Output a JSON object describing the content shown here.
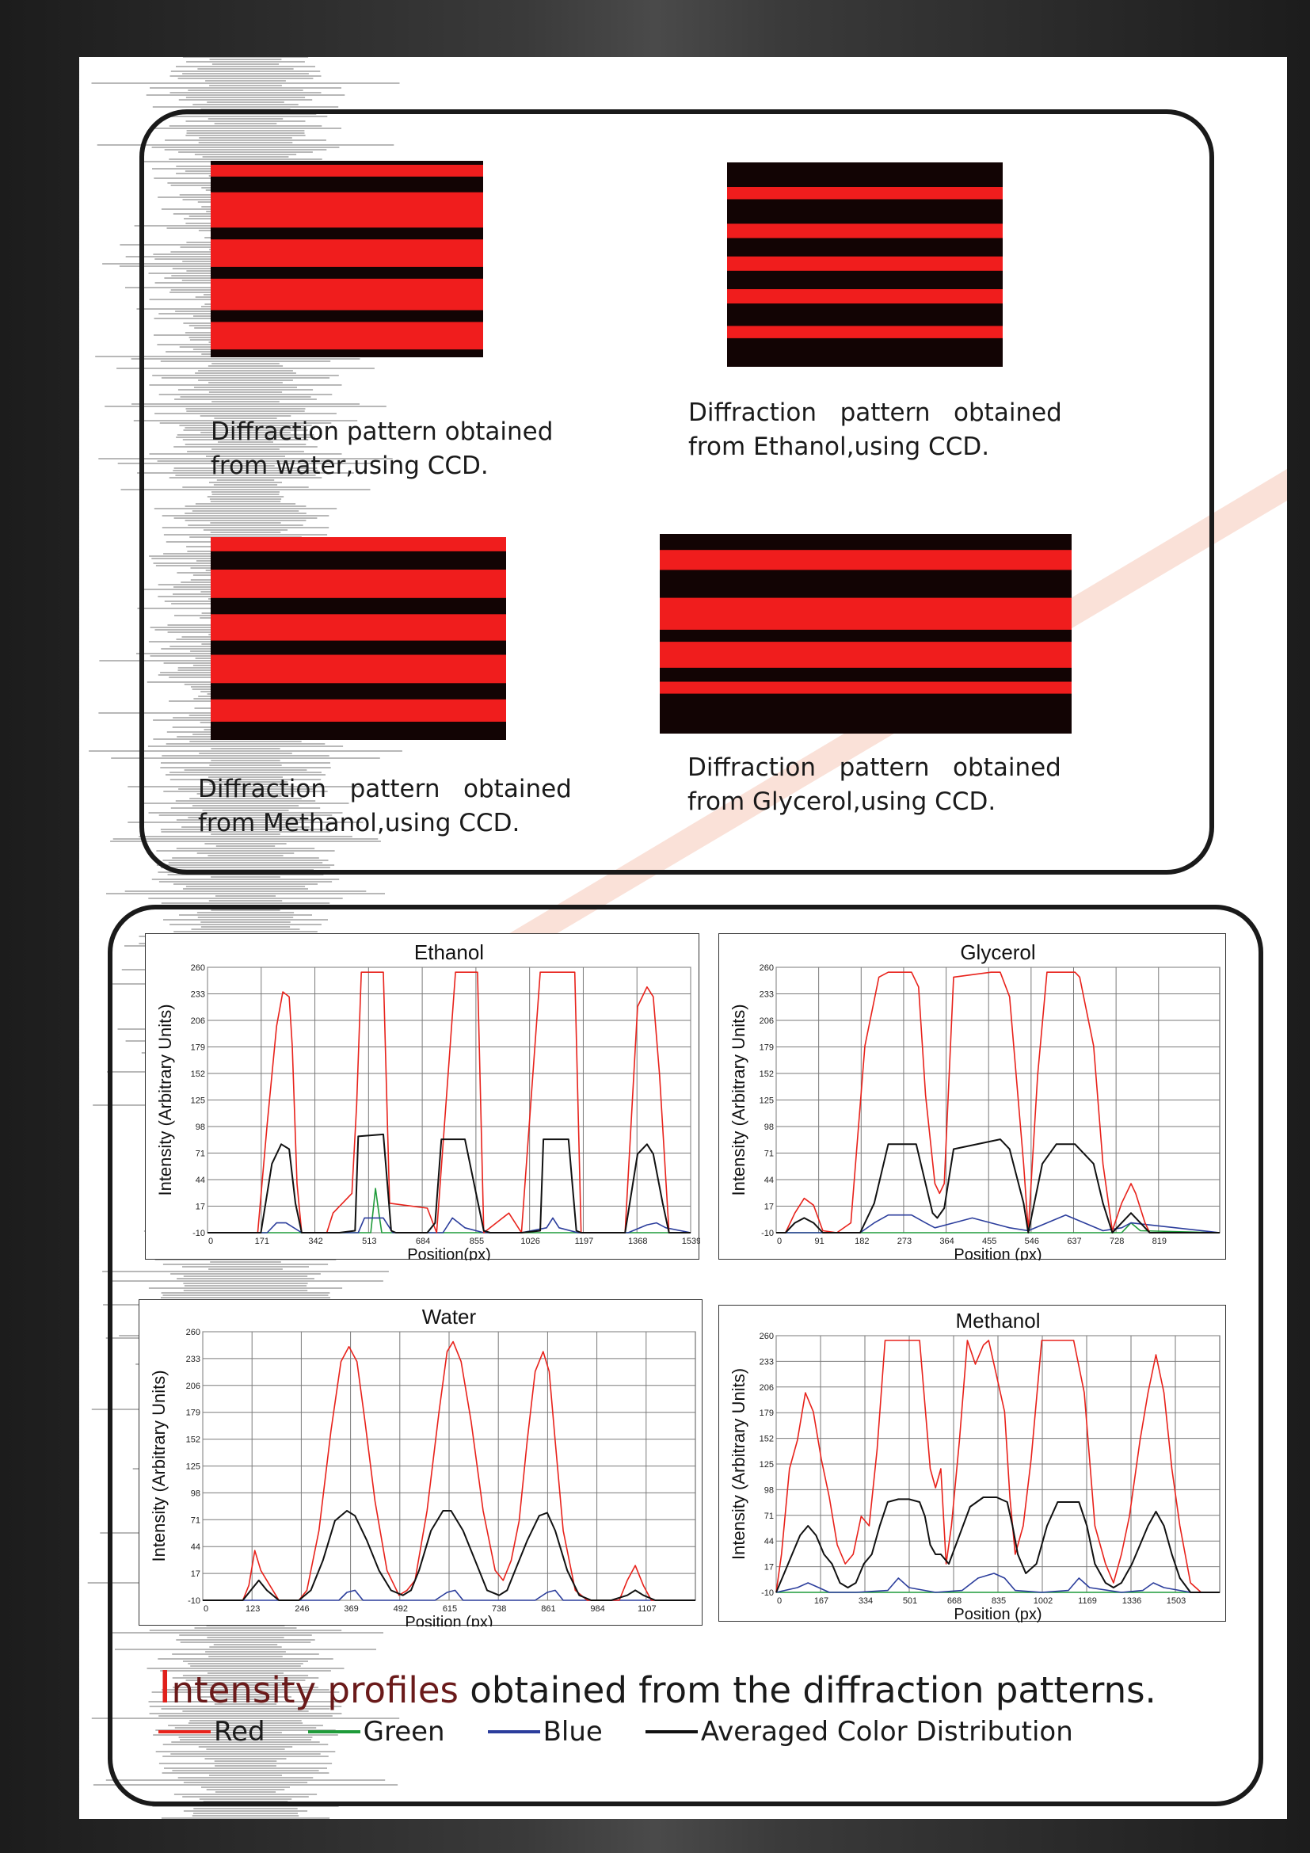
{
  "captions": {
    "water": [
      "Diffraction pattern obtained",
      "from water,using CCD."
    ],
    "ethanol": [
      "Diffraction   pattern   obtained",
      "from Ethanol,using CCD."
    ],
    "methanol": [
      "Diffraction   pattern   obtained",
      "from Methanol,using CCD."
    ],
    "glycerol": [
      "Diffraction   pattern   obtained",
      "from Glycerol,using CCD."
    ]
  },
  "colors": {
    "red": "#e8221b",
    "green": "#1f9b3a",
    "blue": "#2b3d9c",
    "black": "#111111",
    "photo_red": "#f01d1d",
    "photo_dark": "#120404"
  },
  "headline": {
    "cap": "I",
    "highlight": "ntensity profiles",
    "rest": " obtained from the diffraction patterns."
  },
  "legend": [
    {
      "label": "Red",
      "color": "#e8221b"
    },
    {
      "label": "Green",
      "color": "#1f9b3a"
    },
    {
      "label": "Blue",
      "color": "#2b3d9c"
    },
    {
      "label": "Averaged Color Distribution",
      "color": "#111111"
    }
  ],
  "chart_data": [
    {
      "type": "line",
      "title": "Ethanol",
      "xlabel": "Position(px)",
      "ylabel": "Intensity (Arbitrary Units)",
      "xticks": [
        0,
        171,
        342,
        513,
        684,
        855,
        1026,
        1197,
        1368,
        1539
      ],
      "yticks": [
        -10,
        17,
        44,
        71,
        98,
        125,
        152,
        179,
        206,
        233,
        260
      ],
      "xlim": [
        0,
        1539
      ],
      "ylim": [
        -10,
        260
      ],
      "grid": true,
      "series": [
        {
          "color": "red",
          "x": [
            0,
            160,
            190,
            220,
            240,
            260,
            270,
            285,
            300,
            380,
            400,
            460,
            475,
            490,
            500,
            560,
            580,
            700,
            730,
            790,
            820,
            860,
            880,
            960,
            1000,
            1060,
            1120,
            1170,
            1190,
            1330,
            1370,
            1400,
            1420,
            1440,
            1470,
            1539
          ],
          "y": [
            -10,
            -10,
            100,
            200,
            235,
            230,
            180,
            40,
            -10,
            -10,
            10,
            30,
            120,
            255,
            255,
            255,
            20,
            15,
            -10,
            255,
            255,
            255,
            -10,
            10,
            -10,
            255,
            255,
            255,
            -10,
            -10,
            220,
            240,
            230,
            150,
            -10,
            -10
          ]
        },
        {
          "color": "black",
          "x": [
            0,
            170,
            205,
            235,
            260,
            280,
            300,
            420,
            470,
            480,
            560,
            585,
            600,
            700,
            725,
            745,
            820,
            880,
            900,
            1000,
            1060,
            1070,
            1150,
            1175,
            1190,
            1330,
            1370,
            1400,
            1420,
            1450,
            1470,
            1539
          ],
          "y": [
            -10,
            -10,
            60,
            80,
            75,
            20,
            -10,
            -10,
            -8,
            88,
            90,
            -8,
            -10,
            -10,
            0,
            85,
            85,
            -8,
            -10,
            -10,
            -8,
            85,
            85,
            -8,
            -10,
            -10,
            70,
            80,
            70,
            20,
            -10,
            -10
          ]
        },
        {
          "color": "green",
          "x": [
            0,
            520,
            530,
            535,
            545,
            555,
            1539
          ],
          "y": [
            -10,
            -10,
            20,
            35,
            12,
            -10,
            -10
          ]
        },
        {
          "color": "blue",
          "x": [
            0,
            190,
            220,
            250,
            300,
            420,
            480,
            500,
            520,
            560,
            590,
            700,
            750,
            780,
            820,
            880,
            1000,
            1080,
            1100,
            1120,
            1180,
            1340,
            1400,
            1430,
            1460,
            1539
          ],
          "y": [
            -10,
            -10,
            0,
            0,
            -10,
            -10,
            -10,
            5,
            5,
            5,
            -10,
            -10,
            -10,
            5,
            -5,
            -10,
            -10,
            -5,
            5,
            -5,
            -10,
            -10,
            -2,
            0,
            -5,
            -10
          ]
        }
      ]
    },
    {
      "type": "line",
      "title": "Glycerol",
      "xlabel": "Position (px)",
      "ylabel": "Intensity (Arbitrary Units)",
      "xticks": [
        0,
        91,
        182,
        273,
        364,
        455,
        546,
        637,
        728,
        819
      ],
      "yticks": [
        -10,
        17,
        44,
        71,
        98,
        125,
        152,
        179,
        206,
        233,
        260
      ],
      "xlim": [
        0,
        950
      ],
      "ylim": [
        -10,
        260
      ],
      "grid": true,
      "series": [
        {
          "color": "red",
          "x": [
            0,
            20,
            40,
            60,
            80,
            100,
            130,
            160,
            190,
            220,
            240,
            290,
            305,
            320,
            340,
            350,
            360,
            380,
            460,
            480,
            500,
            530,
            540,
            560,
            580,
            640,
            650,
            680,
            700,
            720,
            740,
            760,
            770,
            790,
            800,
            950
          ],
          "y": [
            -10,
            -10,
            10,
            25,
            18,
            -8,
            -10,
            0,
            180,
            250,
            255,
            255,
            240,
            130,
            40,
            30,
            40,
            250,
            255,
            255,
            230,
            60,
            -8,
            150,
            255,
            255,
            250,
            180,
            60,
            -8,
            20,
            40,
            30,
            0,
            -10,
            -10
          ]
        },
        {
          "color": "black",
          "x": [
            0,
            20,
            40,
            60,
            80,
            100,
            180,
            210,
            240,
            300,
            320,
            335,
            345,
            360,
            380,
            480,
            500,
            530,
            540,
            570,
            600,
            640,
            680,
            700,
            720,
            740,
            760,
            780,
            800,
            950
          ],
          "y": [
            -10,
            -10,
            0,
            5,
            0,
            -10,
            -10,
            20,
            80,
            80,
            40,
            10,
            5,
            15,
            75,
            85,
            75,
            20,
            -10,
            60,
            80,
            80,
            60,
            20,
            -10,
            0,
            10,
            0,
            -10,
            -10
          ]
        },
        {
          "color": "blue",
          "x": [
            0,
            180,
            210,
            240,
            290,
            320,
            340,
            380,
            420,
            460,
            500,
            540,
            580,
            620,
            660,
            700,
            740,
            760,
            950
          ],
          "y": [
            -10,
            -10,
            0,
            8,
            8,
            0,
            -5,
            0,
            5,
            0,
            -5,
            -8,
            0,
            8,
            0,
            -8,
            -5,
            0,
            -10
          ]
        },
        {
          "color": "green",
          "x": [
            0,
            740,
            760,
            780,
            950
          ],
          "y": [
            -10,
            -10,
            0,
            -8,
            -10
          ]
        }
      ]
    },
    {
      "type": "line",
      "title": "Water",
      "xlabel": "Position (px)",
      "ylabel": "Intensity (Arbitrary Units)",
      "xticks": [
        0,
        123,
        246,
        369,
        492,
        615,
        738,
        861,
        984,
        1107
      ],
      "yticks": [
        -10,
        17,
        44,
        71,
        98,
        125,
        152,
        179,
        206,
        233,
        260
      ],
      "xlim": [
        0,
        1230
      ],
      "ylim": [
        -10,
        260
      ],
      "grid": true,
      "series": [
        {
          "color": "red",
          "x": [
            0,
            100,
            115,
            130,
            145,
            160,
            175,
            190,
            240,
            260,
            290,
            320,
            345,
            365,
            385,
            405,
            430,
            460,
            490,
            510,
            530,
            560,
            590,
            610,
            625,
            645,
            670,
            700,
            730,
            750,
            770,
            790,
            810,
            830,
            850,
            865,
            880,
            900,
            930,
            960,
            1010,
            1040,
            1060,
            1080,
            1100,
            1120,
            1230
          ],
          "y": [
            -10,
            -10,
            5,
            40,
            20,
            10,
            0,
            -10,
            -10,
            0,
            60,
            160,
            230,
            245,
            230,
            170,
            90,
            20,
            -5,
            0,
            10,
            80,
            180,
            240,
            250,
            230,
            170,
            80,
            20,
            10,
            30,
            70,
            150,
            220,
            240,
            220,
            150,
            60,
            0,
            -10,
            -10,
            -10,
            10,
            25,
            5,
            -10,
            -10
          ]
        },
        {
          "color": "black",
          "x": [
            0,
            100,
            120,
            140,
            160,
            190,
            240,
            270,
            300,
            330,
            360,
            380,
            410,
            440,
            470,
            500,
            520,
            540,
            570,
            600,
            620,
            650,
            680,
            710,
            740,
            760,
            780,
            810,
            840,
            860,
            880,
            910,
            940,
            970,
            1020,
            1060,
            1080,
            1100,
            1130,
            1230
          ],
          "y": [
            -10,
            -10,
            0,
            10,
            0,
            -10,
            -10,
            0,
            30,
            70,
            80,
            75,
            50,
            20,
            0,
            -5,
            0,
            20,
            60,
            80,
            80,
            60,
            30,
            0,
            -5,
            0,
            20,
            50,
            75,
            78,
            60,
            20,
            -5,
            -10,
            -10,
            -5,
            0,
            -5,
            -10,
            -10
          ]
        },
        {
          "color": "blue",
          "x": [
            0,
            340,
            360,
            380,
            400,
            500,
            580,
            610,
            630,
            650,
            760,
            830,
            860,
            880,
            900,
            1230
          ],
          "y": [
            -10,
            -10,
            -2,
            0,
            -10,
            -10,
            -10,
            -2,
            0,
            -10,
            -10,
            -10,
            -2,
            0,
            -10,
            -10
          ]
        }
      ]
    },
    {
      "type": "line",
      "title": "Methanol",
      "xlabel": "Position (px)",
      "ylabel": "Intensity (Arbitrary Units)",
      "xticks": [
        0,
        167,
        334,
        501,
        668,
        835,
        1002,
        1169,
        1336,
        1503
      ],
      "yticks": [
        -10,
        17,
        44,
        71,
        98,
        125,
        152,
        179,
        206,
        233,
        260
      ],
      "xlim": [
        0,
        1670
      ],
      "ylim": [
        -10,
        260
      ],
      "grid": true,
      "series": [
        {
          "color": "red",
          "x": [
            0,
            20,
            50,
            80,
            110,
            140,
            170,
            200,
            230,
            260,
            290,
            320,
            350,
            380,
            410,
            440,
            470,
            500,
            540,
            580,
            600,
            620,
            640,
            660,
            690,
            720,
            750,
            780,
            800,
            820,
            860,
            880,
            900,
            930,
            960,
            1000,
            1030,
            1080,
            1120,
            1160,
            1200,
            1240,
            1270,
            1300,
            1330,
            1370,
            1400,
            1430,
            1460,
            1490,
            1520,
            1560,
            1600,
            1670
          ],
          "y": [
            -10,
            30,
            120,
            150,
            200,
            180,
            130,
            90,
            40,
            20,
            30,
            70,
            60,
            140,
            255,
            255,
            255,
            255,
            255,
            120,
            100,
            120,
            20,
            60,
            150,
            255,
            230,
            250,
            255,
            230,
            180,
            90,
            30,
            60,
            130,
            255,
            255,
            255,
            255,
            200,
            60,
            20,
            0,
            30,
            70,
            150,
            200,
            240,
            200,
            120,
            60,
            0,
            -10,
            -10
          ]
        },
        {
          "color": "black",
          "x": [
            0,
            30,
            60,
            90,
            120,
            150,
            180,
            210,
            240,
            270,
            300,
            330,
            360,
            390,
            420,
            460,
            500,
            540,
            560,
            580,
            600,
            620,
            650,
            690,
            730,
            780,
            830,
            870,
            890,
            910,
            940,
            980,
            1020,
            1060,
            1100,
            1140,
            1170,
            1200,
            1240,
            1270,
            1300,
            1340,
            1370,
            1400,
            1430,
            1460,
            1490,
            1520,
            1560,
            1670
          ],
          "y": [
            -10,
            10,
            30,
            50,
            60,
            50,
            30,
            20,
            0,
            -5,
            0,
            20,
            30,
            60,
            85,
            88,
            88,
            85,
            70,
            40,
            30,
            30,
            20,
            50,
            80,
            90,
            90,
            85,
            60,
            30,
            10,
            20,
            60,
            85,
            85,
            85,
            60,
            20,
            0,
            -5,
            0,
            20,
            40,
            60,
            75,
            60,
            30,
            5,
            -10,
            -10
          ]
        },
        {
          "color": "blue",
          "x": [
            0,
            80,
            120,
            160,
            200,
            300,
            420,
            460,
            500,
            600,
            700,
            760,
            820,
            860,
            900,
            1000,
            1100,
            1140,
            1180,
            1300,
            1380,
            1420,
            1460,
            1560,
            1670
          ],
          "y": [
            -10,
            -5,
            0,
            -5,
            -10,
            -10,
            -8,
            5,
            -5,
            -10,
            -8,
            5,
            10,
            5,
            -8,
            -10,
            -8,
            5,
            -5,
            -10,
            -8,
            0,
            -5,
            -10,
            -10
          ]
        },
        {
          "color": "green",
          "x": [
            0,
            1670
          ],
          "y": [
            -10,
            -10
          ]
        }
      ]
    }
  ]
}
